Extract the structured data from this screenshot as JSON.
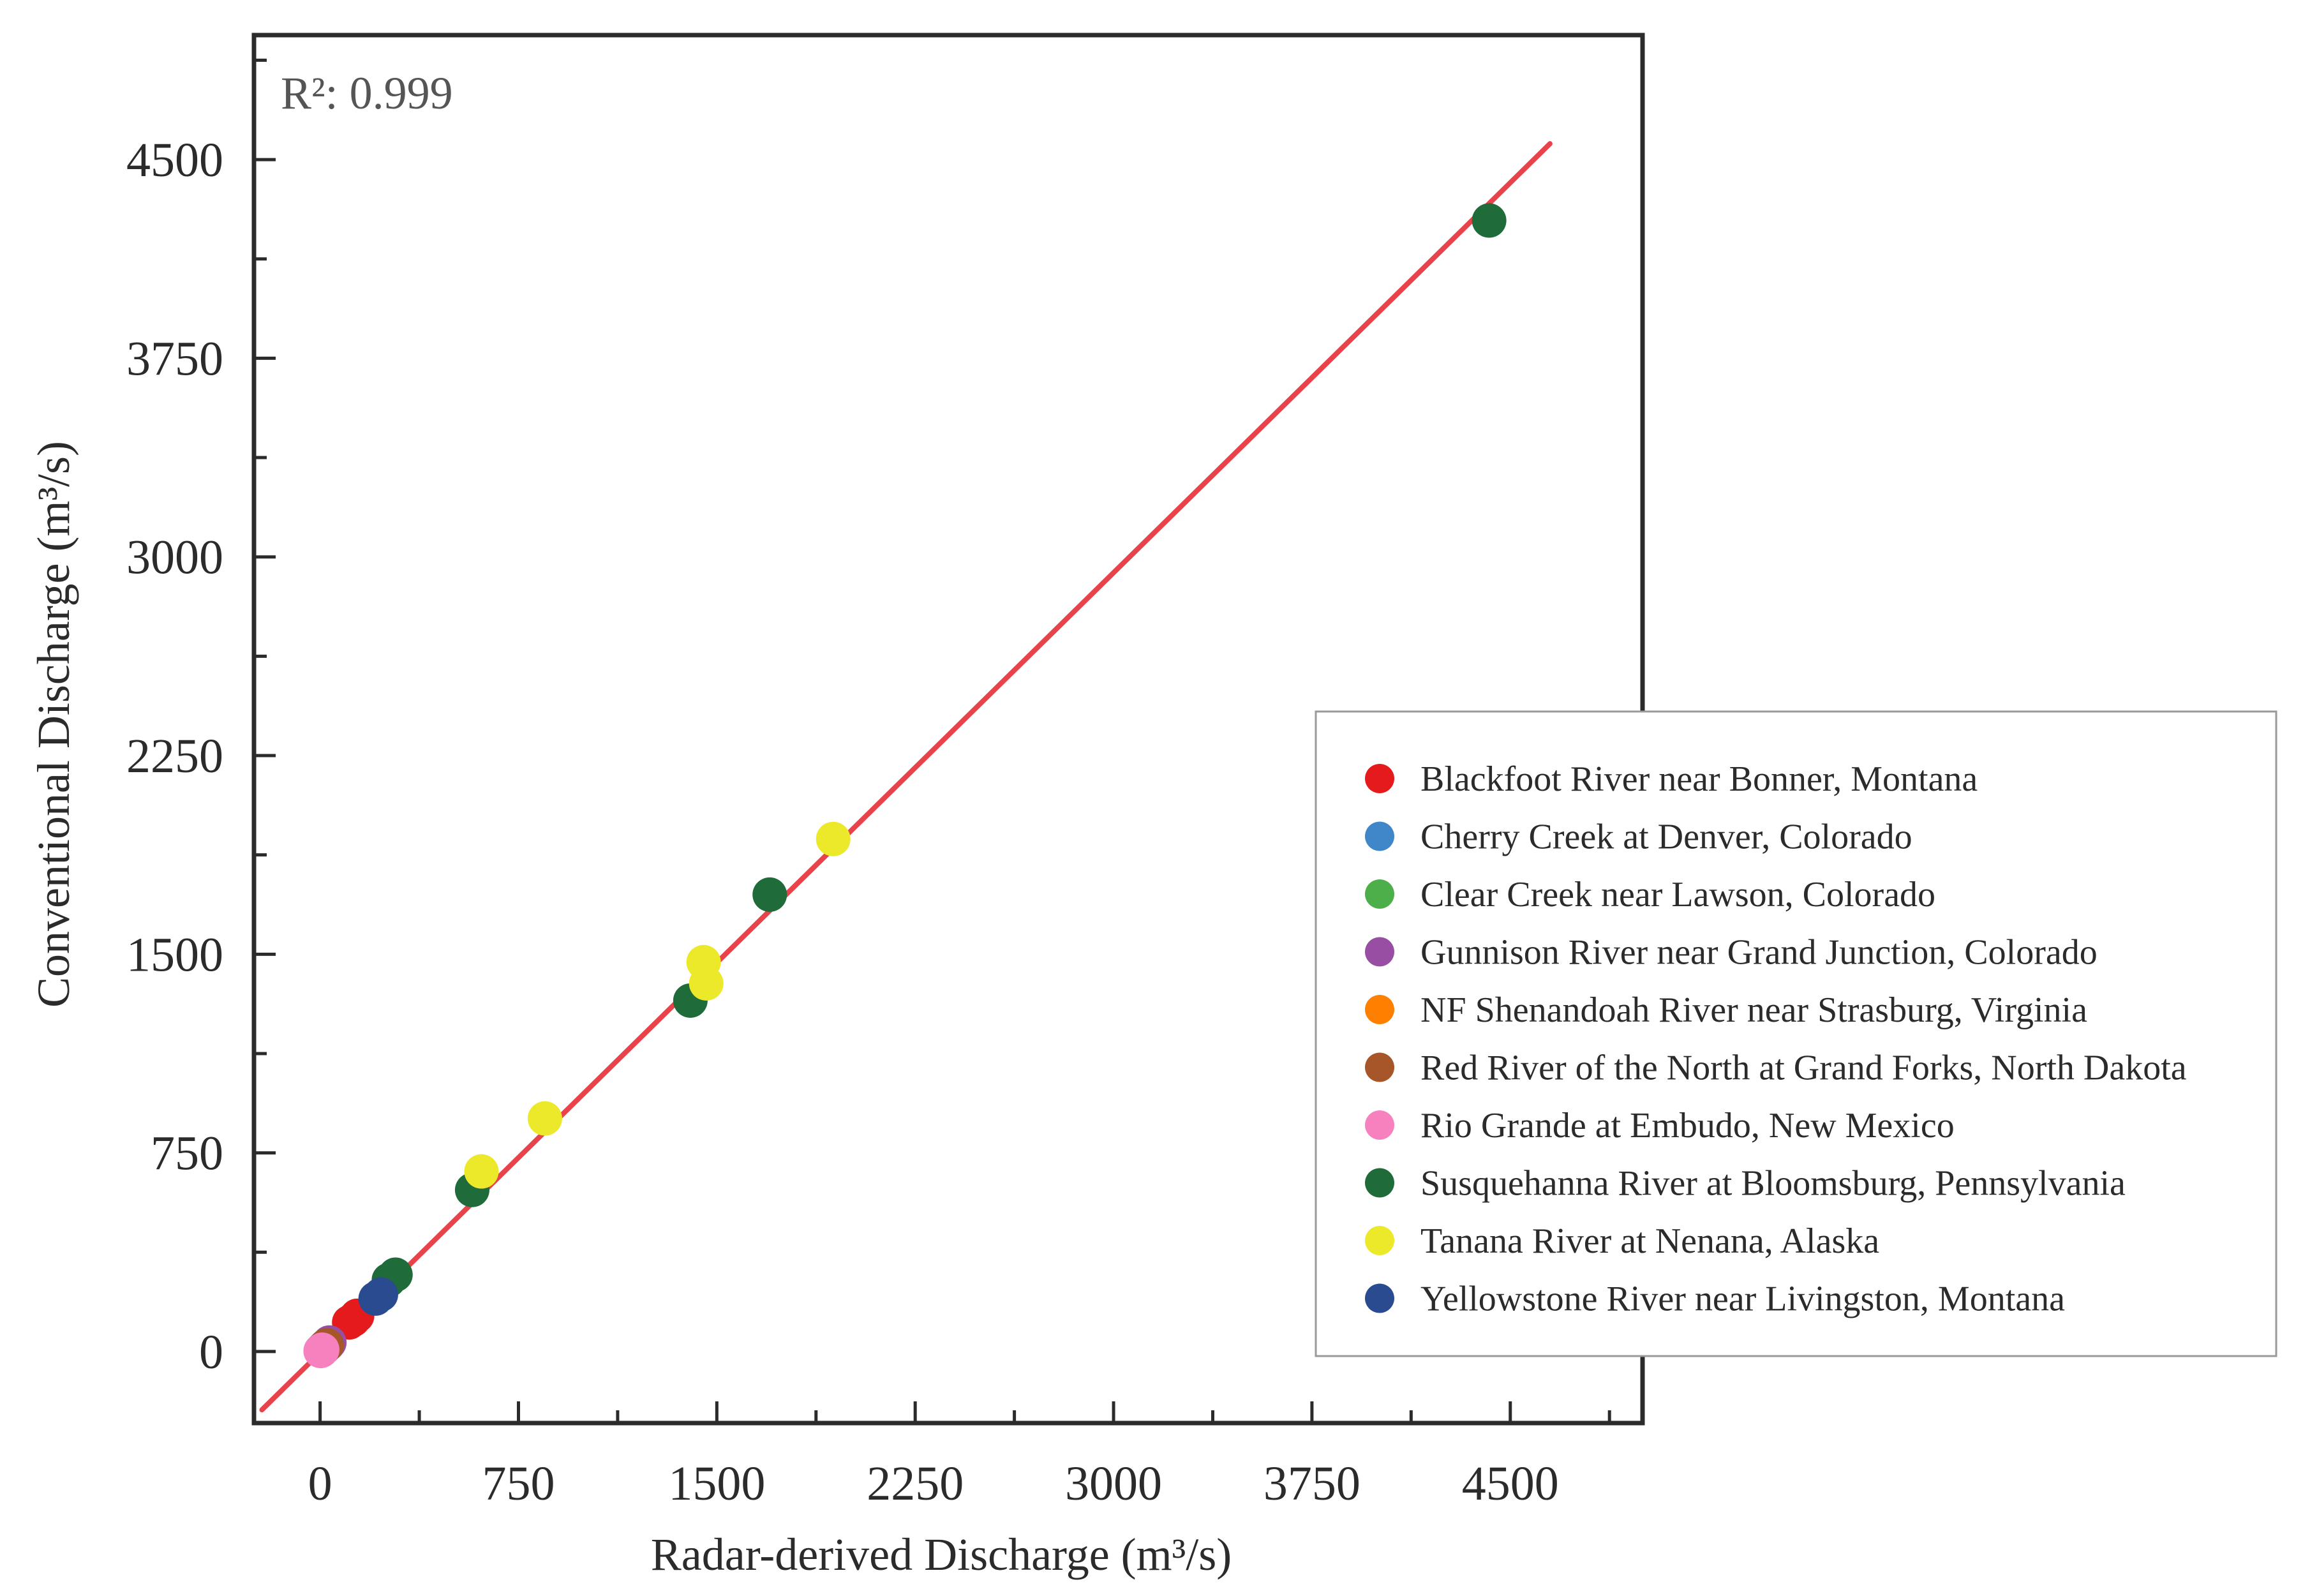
{
  "chart_data": {
    "type": "scatter",
    "title": "",
    "xlabel": "Radar-derived Discharge (m³/s)",
    "ylabel": "Conventional Discharge (m³/s)",
    "xlim": [
      -250,
      5000
    ],
    "ylim": [
      -270,
      4970
    ],
    "xticks": [
      0,
      750,
      1500,
      2250,
      3000,
      3750,
      4500
    ],
    "yticks": [
      0,
      750,
      1500,
      2250,
      3000,
      3750,
      4500
    ],
    "annotation": "R²: 0.999",
    "fit_line": {
      "x": [
        -220,
        4650
      ],
      "y": [
        -220,
        4560
      ],
      "color": "#e8434a"
    },
    "legend_position": "bottom-right",
    "series": [
      {
        "name": "Blackfoot River near Bonner, Montana",
        "color": "#e41a1c",
        "points": [
          [
            110,
            110
          ],
          [
            140,
            135
          ],
          [
            125,
            120
          ]
        ]
      },
      {
        "name": "Cherry Creek at Denver, Colorado",
        "color": "#3f87c8",
        "points": [
          [
            5,
            5
          ],
          [
            15,
            14
          ],
          [
            30,
            28
          ]
        ]
      },
      {
        "name": "Clear Creek near Lawson, Colorado",
        "color": "#4daf4a",
        "points": [
          [
            3,
            3
          ],
          [
            6,
            5
          ]
        ]
      },
      {
        "name": "Gunnison River near Grand Junction, Colorado",
        "color": "#984ea3",
        "points": [
          [
            20,
            20
          ],
          [
            35,
            34
          ]
        ]
      },
      {
        "name": "NF Shenandoah River near Strasburg, Virginia",
        "color": "#ff7f00",
        "points": [
          [
            4,
            4
          ],
          [
            10,
            9
          ]
        ]
      },
      {
        "name": "Red River of the North at Grand Forks, North Dakota",
        "color": "#a65628",
        "points": [
          [
            12,
            12
          ],
          [
            25,
            24
          ]
        ]
      },
      {
        "name": "Rio Grande at Embudo, New Mexico",
        "color": "#f781bf",
        "points": [
          [
            2,
            2
          ],
          [
            8,
            7
          ]
        ]
      },
      {
        "name": "Susquehanna River at Bloomsburg, Pennsylvania",
        "color": "#1f6b3a",
        "points": [
          [
            4420,
            4270
          ],
          [
            1700,
            1725
          ],
          [
            1400,
            1325
          ],
          [
            575,
            610
          ],
          [
            285,
            290
          ],
          [
            260,
            270
          ]
        ]
      },
      {
        "name": "Tanana River at Nenana, Alaska",
        "color": "#ece92b",
        "points": [
          [
            1940,
            1935
          ],
          [
            1450,
            1470
          ],
          [
            1460,
            1390
          ],
          [
            850,
            880
          ],
          [
            610,
            680
          ]
        ]
      },
      {
        "name": "Yellowstone River near Livingston, Montana",
        "color": "#2a4b8f",
        "points": [
          [
            210,
            200
          ],
          [
            230,
            215
          ]
        ]
      }
    ]
  }
}
